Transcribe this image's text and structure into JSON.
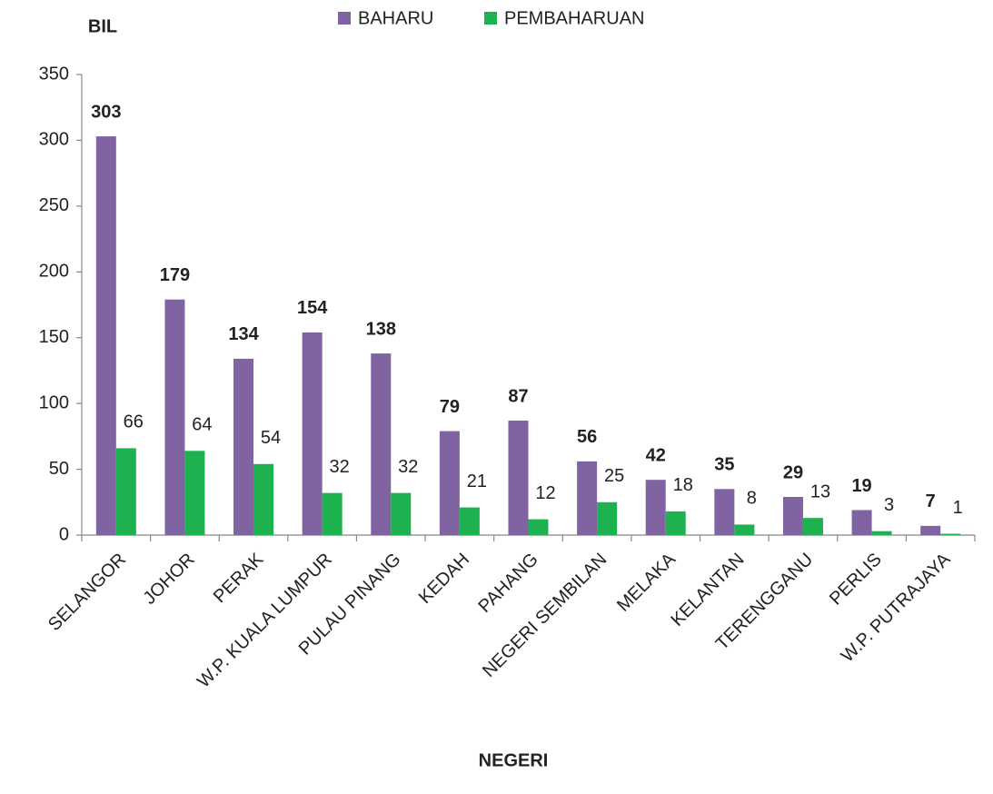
{
  "chart_data": {
    "type": "bar",
    "y_label": "BIL",
    "x_label": "NEGERI",
    "categories": [
      "SELANGOR",
      "JOHOR",
      "PERAK",
      "W.P. KUALA LUMPUR",
      "PULAU PINANG",
      "KEDAH",
      "PAHANG",
      "NEGERI SEMBILAN",
      "MELAKA",
      "KELANTAN",
      "TERENGGANU",
      "PERLIS",
      "W.P. PUTRAJAYA"
    ],
    "series": [
      {
        "name": "BAHARU",
        "color": "#8064a2",
        "values": [
          303,
          179,
          134,
          154,
          138,
          79,
          87,
          56,
          42,
          35,
          29,
          19,
          7
        ]
      },
      {
        "name": "PEMBAHARUAN",
        "color": "#1db14f",
        "values": [
          66,
          64,
          54,
          32,
          32,
          21,
          12,
          25,
          18,
          8,
          13,
          3,
          1
        ]
      }
    ],
    "ylim": [
      0,
      350
    ],
    "yticks": [
      0,
      50,
      100,
      150,
      200,
      250,
      300,
      350
    ],
    "grid": false
  }
}
